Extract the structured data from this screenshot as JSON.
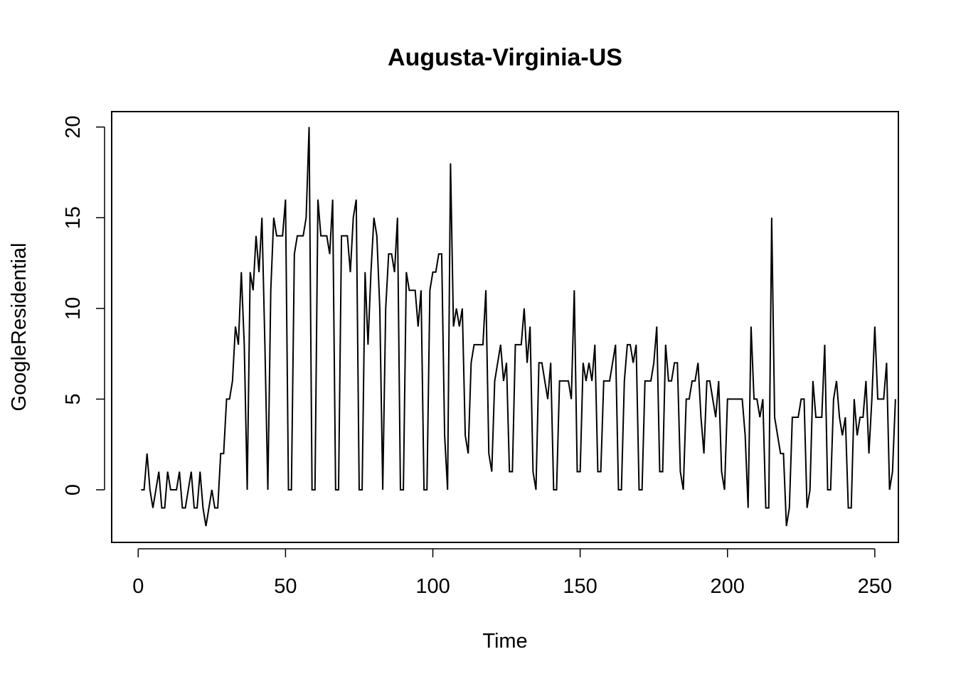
{
  "chart_data": {
    "type": "line",
    "title": "Augusta-Virginia-US",
    "xlabel": "Time",
    "ylabel": "GoogleResidential",
    "xlim": [
      -9,
      258
    ],
    "ylim": [
      -2.9,
      20.85
    ],
    "x_ticks": [
      0,
      50,
      100,
      150,
      200,
      250
    ],
    "y_ticks": [
      0,
      5,
      10,
      15,
      20
    ],
    "x_tick_labels": [
      "0",
      "50",
      "100",
      "150",
      "200",
      "250"
    ],
    "y_tick_labels": [
      "0",
      "5",
      "10",
      "15",
      "20"
    ],
    "grid": false,
    "legend": "none",
    "line_color": "#000000",
    "x_start": 1,
    "series": [
      {
        "values": [
          0,
          0,
          2,
          0,
          -1,
          0,
          1,
          -1,
          -1,
          1,
          0,
          0,
          0,
          1,
          -1,
          -1,
          0,
          1,
          -1,
          -1,
          1,
          -1,
          -2,
          -1,
          0,
          -1,
          -1,
          2,
          2,
          5,
          5,
          6,
          9,
          8,
          12,
          8,
          0,
          12,
          11,
          14,
          12,
          15,
          8,
          0,
          11,
          15,
          14,
          14,
          14,
          16,
          0,
          0,
          13,
          14,
          14,
          14,
          15,
          20,
          0,
          0,
          16,
          14,
          14,
          14,
          13,
          16,
          0,
          0,
          14,
          14,
          14,
          12,
          15,
          16,
          0,
          0,
          12,
          8,
          12,
          15,
          14,
          10,
          0,
          10,
          13,
          13,
          12,
          15,
          0,
          0,
          12,
          11,
          11,
          11,
          9,
          11,
          0,
          0,
          11,
          12,
          12,
          13,
          13,
          3,
          0,
          18,
          9,
          10,
          9,
          10,
          3,
          2,
          7,
          8,
          8,
          8,
          8,
          11,
          2,
          1,
          6,
          7,
          8,
          6,
          7,
          1,
          1,
          8,
          8,
          8,
          10,
          7,
          9,
          1,
          0,
          7,
          7,
          6,
          5,
          7,
          0,
          0,
          6,
          6,
          6,
          6,
          5,
          11,
          1,
          1,
          7,
          6,
          7,
          6,
          8,
          1,
          1,
          6,
          6,
          6,
          7,
          8,
          0,
          0,
          6,
          8,
          8,
          7,
          8,
          0,
          0,
          6,
          6,
          6,
          7,
          9,
          1,
          1,
          8,
          6,
          6,
          7,
          7,
          1,
          0,
          5,
          5,
          6,
          6,
          7,
          4,
          2,
          6,
          6,
          5,
          4,
          6,
          1,
          0,
          5,
          5,
          5,
          5,
          5,
          5,
          3,
          -1,
          9,
          5,
          5,
          4,
          5,
          -1,
          -1,
          15,
          4,
          3,
          2,
          2,
          -2,
          -1,
          4,
          4,
          4,
          5,
          5,
          -1,
          0,
          6,
          4,
          4,
          4,
          8,
          0,
          0,
          5,
          6,
          4,
          3,
          4,
          -1,
          -1,
          5,
          3,
          4,
          4,
          6,
          2,
          5,
          9,
          5,
          5,
          5,
          7,
          0,
          1,
          5
        ]
      }
    ]
  }
}
